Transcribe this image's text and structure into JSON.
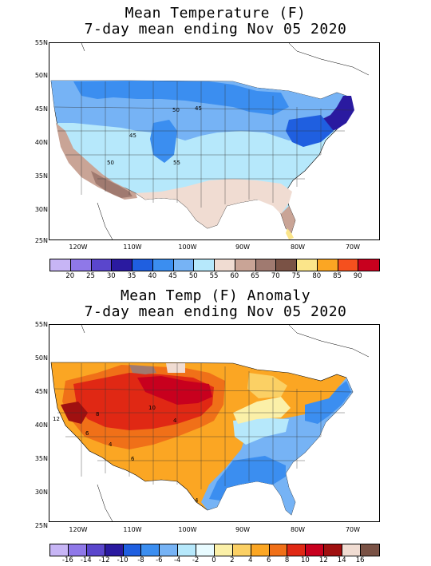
{
  "top_panel": {
    "title_line1": "Mean Temperature (F)",
    "title_line2": "7-day mean ending Nov 05 2020",
    "lat_labels": [
      "55N",
      "50N",
      "45N",
      "40N",
      "35N",
      "30N",
      "25N"
    ],
    "lon_labels": [
      "120W",
      "110W",
      "100W",
      "90W",
      "80W",
      "70W"
    ],
    "contour_labels": [
      "50",
      "45",
      "45",
      "50",
      "55"
    ],
    "colorbar_labels": [
      "20",
      "25",
      "30",
      "35",
      "40",
      "45",
      "50",
      "55",
      "60",
      "65",
      "70",
      "75",
      "80",
      "85",
      "90"
    ],
    "colorbar_colors": [
      "#c7b5f5",
      "#8f78e8",
      "#5a46cc",
      "#2a1aa0",
      "#1f5fe0",
      "#3b8ef0",
      "#76b3f5",
      "#b6e8fb",
      "#f0dcd2",
      "#c9a496",
      "#a07a70",
      "#7a5245",
      "#fbe58a",
      "#fba623",
      "#f5501e",
      "#c8001e"
    ],
    "legend_colors_used": {
      "very_cold": "#2a1aa0",
      "cold": "#3b8ef0",
      "cool": "#76b3f5",
      "mild": "#b6e8fb",
      "warm_tan": "#f0dcd2",
      "warm_brown": "#c9a496",
      "hot_brown": "#a07a70",
      "hotter": "#7a5245",
      "yellow": "#fbe58a"
    }
  },
  "bottom_panel": {
    "title_line1": "Mean Temp (F) Anomaly",
    "title_line2": "7-day mean ending Nov 05 2020",
    "lat_labels": [
      "55N",
      "50N",
      "45N",
      "40N",
      "35N",
      "30N",
      "25N"
    ],
    "lon_labels": [
      "120W",
      "110W",
      "100W",
      "90W",
      "80W",
      "70W"
    ],
    "contour_labels": [
      "10",
      "8",
      "6",
      "4",
      "6",
      "4",
      "12",
      "4"
    ],
    "colorbar_labels": [
      "-16",
      "-14",
      "-12",
      "-10",
      "-8",
      "-6",
      "-4",
      "-2",
      "0",
      "2",
      "4",
      "6",
      "8",
      "10",
      "12",
      "14",
      "16"
    ],
    "colorbar_colors": [
      "#c7b5f5",
      "#8f78e8",
      "#5a46cc",
      "#2a1aa0",
      "#1f5fe0",
      "#3b8ef0",
      "#76b3f5",
      "#b6e8fb",
      "#e8fbff",
      "#fbf0a8",
      "#fbd064",
      "#fba623",
      "#f07018",
      "#e02814",
      "#c8001e",
      "#a01010",
      "#f0dcd2",
      "#7a5245"
    ]
  }
}
